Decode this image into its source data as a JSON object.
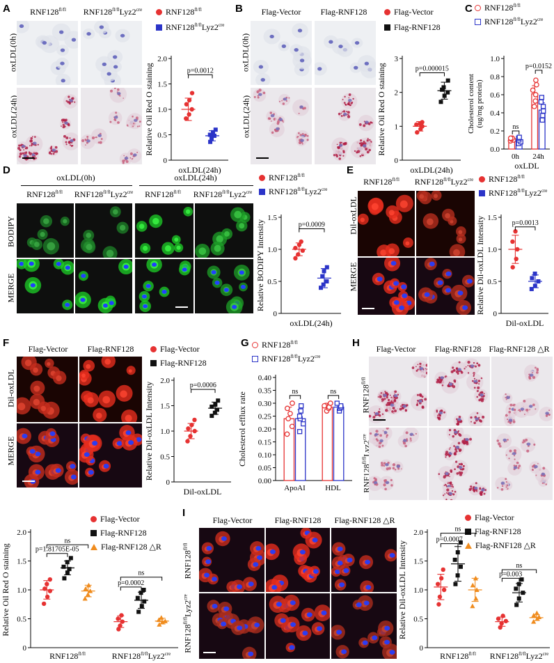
{
  "labels": {
    "A": "A",
    "B": "B",
    "C": "C",
    "D": "D",
    "E": "E",
    "F": "F",
    "G": "G",
    "H": "H",
    "I": "I"
  },
  "colors": {
    "red": "#e63232",
    "blue": "#2b34c8",
    "black": "#111111",
    "orange": "#f08c1e"
  },
  "panelA": {
    "col1": "RNF128",
    "col1_sup": "fl/fl",
    "col2": "RNF128",
    "col2_sup": "fl/fl",
    "col2_tail": "Lyz2",
    "col2_tail_sup": "cre",
    "row1": "oxLDL(0h)",
    "row2": "oxLDL(24h)",
    "legend1": "RNF128",
    "legend1_sup": "fl/fl",
    "legend2": "RNF128",
    "legend2_sup": "fl/fl",
    "legend2_tail": "Lyz2",
    "legend2_tail_sup": "cre"
  },
  "panelB": {
    "col1": "Flag-Vector",
    "col2": "Flag-RNF128",
    "row1": "oxLDL(0h)",
    "row2": "oxLDL(24h)",
    "legend1": "Flag-Vector",
    "legend2": "Flag-RNF128"
  },
  "panelC": {
    "legend1": "RNF128",
    "legend1_sup": "fl/fl",
    "legend2": "RNF128",
    "legend2_sup": "fl/fl",
    "legend2_tail": "Lyz2",
    "legend2_tail_sup": "cre"
  },
  "panelD": {
    "group1": "oxLDL(0h)",
    "group2": "oxLDL(24h)",
    "col": "RNF128",
    "col_sup": "fl/fl",
    "col_b_tail": "Lyz2",
    "col_b_tail_sup": "cre",
    "row1": "BODIPY",
    "row2": "MERGE",
    "legend1": "RNF128",
    "legend1_sup": "fl/fl",
    "legend2": "RNF128",
    "legend2_sup": "fl/fl",
    "legend2_tail": "Lyz2",
    "legend2_tail_sup": "cre"
  },
  "panelE": {
    "col1": "RNF128",
    "col1_sup": "fl/fl",
    "col2": "RNF128",
    "col2_sup": "fl/fl",
    "col2_tail": "Lyz2",
    "col2_tail_sup": "cre",
    "row1": "Dil-oxLDL",
    "row2": "MERGE",
    "legend1": "RNF128",
    "legend1_sup": "fl/fl",
    "legend2": "RNF128",
    "legend2_sup": "fl/fl",
    "legend2_tail": "Lyz2",
    "legend2_tail_sup": "cre"
  },
  "panelF": {
    "col1": "Flag-Vector",
    "col2": "Flag-RNF128",
    "row1": "Dil-oxLDL",
    "row2": "MERGE",
    "legend1": "Flag-Vector",
    "legend2": "Flag-RNF128"
  },
  "panelG": {
    "legend1": "RNF128",
    "legend1_sup": "fl/fl",
    "legend2": "RNF128",
    "legend2_sup": "fl/fl",
    "legend2_tail": "Lyz2",
    "legend2_tail_sup": "cre"
  },
  "panelH": {
    "col1": "Flag-Vector",
    "col2": "Flag-RNF128",
    "col3": "Flag-RNF128 △R",
    "row1": "RNF128",
    "row1_sup": "fl/fl",
    "row2": "RNF128",
    "row2_sup": "fl/fl",
    "row2_tail": "Lyz2",
    "row2_tail_sup": "cre",
    "legend1": "Flag-Vector",
    "legend2": "Flag-RNF128",
    "legend3": "Flag-RNF128 △R"
  },
  "panelI": {
    "col1": "Flag-Vector",
    "col2": "Flag-RNF128",
    "col3": "Flag-RNF128 △R",
    "row1": "RNF128",
    "row1_sup": "fl/fl",
    "row2": "RNF128",
    "row2_sup": "fl/fl",
    "row2_tail": "Lyz2",
    "row2_tail_sup": "cre",
    "legend1": "Flag-Vector",
    "legend2": "Flag-RNF128",
    "legend3": "Flag-RNF128 △R"
  },
  "chart_data": [
    {
      "id": "A",
      "type": "scatter",
      "ylabel": "Relative Oil Red O staining",
      "xlabel": "oxLDL(24h)",
      "ylim": [
        0,
        2.0
      ],
      "yticks": [
        0,
        0.5,
        1.0,
        1.5,
        2.0
      ],
      "tick_labels": [
        "0",
        "0.5",
        "1.0",
        "1.5",
        "2.0"
      ],
      "groups": [
        {
          "color": "red",
          "marker": "circle",
          "mean": 1.0,
          "sd": 0.22,
          "points": [
            0.82,
            0.9,
            1.0,
            1.1,
            1.18,
            1.32
          ]
        },
        {
          "color": "blue",
          "marker": "square",
          "mean": 0.48,
          "sd": 0.1,
          "points": [
            0.36,
            0.42,
            0.48,
            0.5,
            0.55,
            0.6
          ]
        }
      ],
      "comparisons": [
        {
          "text": "p=0.0012",
          "a": 0,
          "b": 1,
          "y": 1.68
        }
      ]
    },
    {
      "id": "B",
      "type": "scatter",
      "ylabel": "Relative Oil Red O staining",
      "xlabel": "oxLDL(24h)",
      "ylim": [
        0,
        3
      ],
      "yticks": [
        0,
        1,
        2,
        3
      ],
      "tick_labels": [
        "0",
        "1",
        "2",
        "3"
      ],
      "groups": [
        {
          "color": "red",
          "marker": "circle",
          "mean": 1.0,
          "sd": 0.14,
          "points": [
            0.82,
            0.92,
            1.0,
            1.05,
            1.08,
            1.12
          ]
        },
        {
          "color": "black",
          "marker": "square",
          "mean": 2.05,
          "sd": 0.25,
          "points": [
            1.72,
            1.9,
            2.0,
            2.08,
            2.15,
            2.35
          ]
        }
      ],
      "comparisons": [
        {
          "text": "p=0.000015",
          "a": 0,
          "b": 1,
          "y": 2.58
        }
      ]
    },
    {
      "id": "C",
      "type": "bar",
      "ylabel": "Cholesterol content (ug/mg protein)",
      "xlabel": "oxLDL",
      "categories": [
        "0h",
        "24h"
      ],
      "ylim": [
        0,
        1.0
      ],
      "yticks": [
        0,
        0.2,
        0.4,
        0.6,
        0.8,
        1.0
      ],
      "tick_labels": [
        "0.0",
        "0.2",
        "0.4",
        "0.6",
        "0.8",
        "1.0"
      ],
      "series": [
        {
          "color": "red",
          "style": "open-circle",
          "values": [
            0.11,
            0.61
          ],
          "sd": [
            0.02,
            0.09
          ],
          "points": [
            [
              0.09,
              0.1,
              0.11,
              0.12,
              0.12
            ],
            [
              0.47,
              0.53,
              0.6,
              0.65,
              0.71,
              0.76
            ]
          ]
        },
        {
          "color": "blue",
          "style": "open-square",
          "values": [
            0.1,
            0.43
          ],
          "sd": [
            0.03,
            0.08
          ],
          "points": [
            [
              0.06,
              0.08,
              0.1,
              0.12,
              0.13
            ],
            [
              0.32,
              0.37,
              0.42,
              0.47,
              0.52,
              0.57
            ]
          ]
        }
      ],
      "comparisons": [
        {
          "text": "ns",
          "cat": 0,
          "y": 0.2
        },
        {
          "text": "p=0.0152",
          "cat": 1,
          "y": 0.87
        }
      ]
    },
    {
      "id": "D",
      "type": "scatter",
      "ylabel": "Relative BODIPY Intensity",
      "xlabel": "oxLDL(24h)",
      "ylim": [
        0,
        1.5
      ],
      "yticks": [
        0,
        0.5,
        1.0,
        1.5
      ],
      "tick_labels": [
        "0",
        "0.5",
        "1.0",
        "1.5"
      ],
      "groups": [
        {
          "color": "red",
          "marker": "circle",
          "mean": 1.0,
          "sd": 0.1,
          "points": [
            0.86,
            0.92,
            0.98,
            1.02,
            1.07,
            1.12
          ]
        },
        {
          "color": "blue",
          "marker": "square",
          "mean": 0.55,
          "sd": 0.15,
          "points": [
            0.4,
            0.45,
            0.5,
            0.58,
            0.66,
            0.72
          ]
        }
      ],
      "comparisons": [
        {
          "text": "p=0.0009",
          "a": 0,
          "b": 1,
          "y": 1.32
        }
      ]
    },
    {
      "id": "E",
      "type": "scatter",
      "ylabel": "Relative Dil-oxLDL Intensity",
      "xlabel": "Dil-oxLDL",
      "ylim": [
        0,
        1.5
      ],
      "yticks": [
        0,
        0.5,
        1.0,
        1.5
      ],
      "tick_labels": [
        "0",
        "0.5",
        "1.0",
        "1.5"
      ],
      "groups": [
        {
          "color": "red",
          "marker": "circle",
          "mean": 1.0,
          "sd": 0.22,
          "points": [
            0.72,
            0.85,
            1.0,
            1.12,
            1.28
          ]
        },
        {
          "color": "blue",
          "marker": "square",
          "mean": 0.5,
          "sd": 0.1,
          "points": [
            0.38,
            0.43,
            0.5,
            0.55,
            0.62
          ]
        }
      ],
      "comparisons": [
        {
          "text": "p=0.0013",
          "a": 0,
          "b": 1,
          "y": 1.35
        }
      ]
    },
    {
      "id": "F",
      "type": "scatter",
      "ylabel": "Relative Dil-oxLDL Intensity",
      "xlabel": "Dil-oxLDL",
      "ylim": [
        0,
        2.0
      ],
      "yticks": [
        0,
        0.5,
        1.0,
        1.5,
        2.0
      ],
      "tick_labels": [
        "0",
        "0.5",
        "1.0",
        "1.5",
        "2.0"
      ],
      "groups": [
        {
          "color": "red",
          "marker": "circle",
          "mean": 1.0,
          "sd": 0.15,
          "points": [
            0.8,
            0.9,
            1.0,
            1.05,
            1.12,
            1.22
          ]
        },
        {
          "color": "black",
          "marker": "square",
          "mean": 1.45,
          "sd": 0.12,
          "points": [
            1.3,
            1.36,
            1.42,
            1.48,
            1.52,
            1.6
          ]
        }
      ],
      "comparisons": [
        {
          "text": "p=0.0006",
          "a": 0,
          "b": 1,
          "y": 1.82
        }
      ]
    },
    {
      "id": "G",
      "type": "bar",
      "ylabel": "Cholesterol efflux rate",
      "categories": [
        "ApoAI",
        "HDL"
      ],
      "ylim": [
        0,
        0.4
      ],
      "yticks": [
        0,
        0.05,
        0.1,
        0.15,
        0.2,
        0.25,
        0.3,
        0.35,
        0.4
      ],
      "tick_labels": [
        "0.00",
        "0.05",
        "0.10",
        "0.15",
        "0.20",
        "0.25",
        "0.30",
        "0.35",
        "0.40"
      ],
      "series": [
        {
          "color": "red",
          "style": "open-circle",
          "values": [
            0.24,
            0.285
          ],
          "sd": [
            0.045,
            0.015
          ],
          "points": [
            [
              0.18,
              0.21,
              0.24,
              0.26,
              0.28,
              0.3
            ],
            [
              0.27,
              0.28,
              0.285,
              0.29,
              0.3
            ]
          ]
        },
        {
          "color": "blue",
          "style": "open-square",
          "values": [
            0.24,
            0.285
          ],
          "sd": [
            0.035,
            0.012
          ],
          "points": [
            [
              0.19,
              0.22,
              0.24,
              0.25,
              0.27,
              0.29
            ],
            [
              0.27,
              0.28,
              0.285,
              0.29,
              0.3
            ]
          ]
        }
      ],
      "comparisons": [
        {
          "text": "ns",
          "cat": 0,
          "y": 0.33
        },
        {
          "text": "ns",
          "cat": 1,
          "y": 0.33
        }
      ]
    },
    {
      "id": "H",
      "type": "scatter",
      "ylabel": "Relative Oil Red O staining",
      "ylim": [
        0,
        2.0
      ],
      "yticks": [
        0,
        0.5,
        1.0,
        1.5,
        2.0
      ],
      "tick_labels": [
        "0",
        "0.5",
        "1.0",
        "1.5",
        "2.0"
      ],
      "categories": [
        {
          "label": "RNF128",
          "sup": "fl/fl"
        },
        {
          "label": "RNF128",
          "sup": "fl/fl",
          "tail": "Lyz2",
          "tail_sup": "cre"
        }
      ],
      "cat_groups": [
        [
          {
            "color": "red",
            "marker": "circle",
            "mean": 1.0,
            "sd": 0.16,
            "points": [
              0.76,
              0.88,
              0.98,
              1.02,
              1.1,
              1.18
            ]
          },
          {
            "color": "black",
            "marker": "square",
            "mean": 1.38,
            "sd": 0.12,
            "points": [
              1.2,
              1.3,
              1.36,
              1.4,
              1.48,
              1.55
            ]
          },
          {
            "color": "orange",
            "marker": "triangle",
            "mean": 0.98,
            "sd": 0.1,
            "points": [
              0.85,
              0.92,
              0.98,
              1.02,
              1.08
            ]
          }
        ],
        [
          {
            "color": "red",
            "marker": "circle",
            "mean": 0.45,
            "sd": 0.1,
            "points": [
              0.32,
              0.38,
              0.45,
              0.5,
              0.56
            ]
          },
          {
            "color": "black",
            "marker": "square",
            "mean": 0.82,
            "sd": 0.14,
            "points": [
              0.62,
              0.72,
              0.8,
              0.86,
              0.95,
              1.0
            ]
          },
          {
            "color": "orange",
            "marker": "triangle",
            "mean": 0.46,
            "sd": 0.05,
            "points": [
              0.4,
              0.44,
              0.46,
              0.48,
              0.52
            ]
          }
        ]
      ],
      "comparisons": [
        {
          "text": "ns",
          "cat": 0,
          "a": 0,
          "b": 2,
          "y": 1.78
        },
        {
          "text": "p=1.81705E-05",
          "cat": 0,
          "a": 0,
          "b": 1,
          "y": 1.63
        },
        {
          "text": "ns",
          "cat": 1,
          "a": 0,
          "b": 2,
          "y": 1.22
        },
        {
          "text": "p=0.0002",
          "cat": 1,
          "a": 0,
          "b": 1,
          "y": 1.05
        }
      ]
    },
    {
      "id": "I",
      "type": "scatter",
      "ylabel": "Relative Dil-oxLDL Intensity",
      "ylim": [
        0,
        2.0
      ],
      "yticks": [
        0,
        0.5,
        1.0,
        1.5,
        2.0
      ],
      "tick_labels": [
        "0",
        "0.5",
        "1.0",
        "1.5",
        "2.0"
      ],
      "categories": [
        {
          "label": "RNF128",
          "sup": "fl/fl"
        },
        {
          "label": "RNF128",
          "sup": "fl/fl",
          "tail": "Lyz2",
          "tail_sup": "cre"
        }
      ],
      "cat_groups": [
        [
          {
            "color": "red",
            "marker": "circle",
            "mean": 1.05,
            "sd": 0.22,
            "points": [
              0.75,
              0.88,
              1.0,
              1.1,
              1.2,
              1.35
            ]
          },
          {
            "color": "black",
            "marker": "square",
            "mean": 1.45,
            "sd": 0.3,
            "points": [
              1.1,
              1.25,
              1.4,
              1.52,
              1.65,
              1.82
            ]
          },
          {
            "color": "orange",
            "marker": "triangle",
            "mean": 1.0,
            "sd": 0.2,
            "points": [
              0.72,
              0.85,
              1.0,
              1.08,
              1.2
            ]
          }
        ],
        [
          {
            "color": "red",
            "marker": "circle",
            "mean": 0.45,
            "sd": 0.08,
            "points": [
              0.35,
              0.42,
              0.46,
              0.5,
              0.55
            ]
          },
          {
            "color": "black",
            "marker": "square",
            "mean": 0.95,
            "sd": 0.16,
            "points": [
              0.74,
              0.85,
              0.95,
              1.02,
              1.1,
              1.18
            ]
          },
          {
            "color": "orange",
            "marker": "triangle",
            "mean": 0.52,
            "sd": 0.05,
            "points": [
              0.45,
              0.5,
              0.53,
              0.56,
              0.6
            ]
          }
        ]
      ],
      "comparisons": [
        {
          "text": "ns",
          "cat": 0,
          "a": 0,
          "b": 2,
          "y": 1.98
        },
        {
          "text": "p=0.0007",
          "cat": 0,
          "a": 0,
          "b": 1,
          "y": 1.8
        },
        {
          "text": "ns",
          "cat": 1,
          "a": 0,
          "b": 2,
          "y": 1.35
        },
        {
          "text": "p=0.003",
          "cat": 1,
          "a": 0,
          "b": 1,
          "y": 1.2
        }
      ]
    }
  ]
}
